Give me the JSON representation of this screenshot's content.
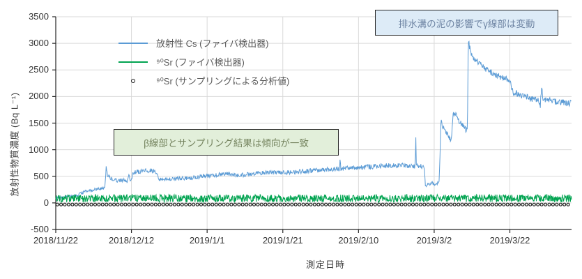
{
  "chart_data": {
    "type": "line",
    "title": "",
    "xlabel": "測定日時",
    "ylabel": "放射性物質濃度 (Bq L⁻¹)",
    "ylim": [
      -500,
      3500
    ],
    "yticks": [
      3500,
      3000,
      2500,
      2000,
      1500,
      1000,
      500,
      0,
      -500
    ],
    "xticks": [
      {
        "day": 0,
        "label": "2018/11/22"
      },
      {
        "day": 20,
        "label": "2018/12/12"
      },
      {
        "day": 40,
        "label": "2019/1/1"
      },
      {
        "day": 60,
        "label": "2019/1/21"
      },
      {
        "day": 80,
        "label": "2019/2/10"
      },
      {
        "day": 100,
        "label": "2019/3/2"
      },
      {
        "day": 120,
        "label": "2019/3/22"
      }
    ],
    "x_domain_days": 136.3,
    "grid": true,
    "gridline_color": "#d9d9d9",
    "axis_color": "#262626",
    "legend": [
      {
        "label": "放射性 Cs (ファイバ検出器)",
        "type": "line",
        "color": "#5B9BD5"
      },
      {
        "label": "⁹⁰Sr (ファイバ検出器)",
        "type": "line",
        "color": "#00A350"
      },
      {
        "label": "⁹⁰Sr (サンプリングによる分析値)",
        "type": "dot",
        "color": "#1A1A1A"
      }
    ],
    "series": [
      {
        "name": "放射性 Cs (ファイバ検出器)",
        "type": "noisy-line",
        "color": "#5B9BD5",
        "noise_base": 22,
        "noise_scale": 0.035,
        "noise_max": 60,
        "control_points": [
          [
            0,
            80
          ],
          [
            2,
            105
          ],
          [
            4,
            125
          ],
          [
            6,
            150
          ],
          [
            7,
            195
          ],
          [
            8,
            215
          ],
          [
            9,
            230
          ],
          [
            10,
            245
          ],
          [
            11,
            255
          ],
          [
            12,
            265
          ],
          [
            13,
            278
          ],
          [
            13.3,
            700
          ],
          [
            13.6,
            540
          ],
          [
            14.2,
            475
          ],
          [
            15,
            445
          ],
          [
            16,
            430
          ],
          [
            17,
            415
          ],
          [
            18,
            432
          ],
          [
            18.8,
            392
          ],
          [
            19.3,
            498
          ],
          [
            19.8,
            430
          ],
          [
            20.5,
            552
          ],
          [
            21,
            572
          ],
          [
            22,
            590
          ],
          [
            23,
            600
          ],
          [
            24,
            612
          ],
          [
            25,
            602
          ],
          [
            26,
            596
          ],
          [
            26.8,
            576
          ],
          [
            27.2,
            432
          ],
          [
            28,
            446
          ],
          [
            29,
            452
          ],
          [
            30,
            446
          ],
          [
            31,
            455
          ],
          [
            32,
            450
          ],
          [
            33,
            460
          ],
          [
            34,
            456
          ],
          [
            35,
            464
          ],
          [
            36,
            470
          ],
          [
            38,
            490
          ],
          [
            40,
            506
          ],
          [
            42,
            520
          ],
          [
            44,
            536
          ],
          [
            45,
            550
          ],
          [
            46,
            540
          ],
          [
            47,
            526
          ],
          [
            48,
            516
          ],
          [
            50,
            530
          ],
          [
            52,
            544
          ],
          [
            54,
            556
          ],
          [
            56,
            566
          ],
          [
            58,
            576
          ],
          [
            60,
            566
          ],
          [
            62,
            576
          ],
          [
            64,
            586
          ],
          [
            66,
            596
          ],
          [
            68,
            606
          ],
          [
            70,
            616
          ],
          [
            72,
            626
          ],
          [
            74,
            634
          ],
          [
            75,
            640
          ],
          [
            75.15,
            890
          ],
          [
            75.3,
            646
          ],
          [
            76,
            650
          ],
          [
            78,
            656
          ],
          [
            80,
            664
          ],
          [
            82,
            674
          ],
          [
            84,
            684
          ],
          [
            86,
            694
          ],
          [
            88,
            700
          ],
          [
            90,
            696
          ],
          [
            92,
            700
          ],
          [
            94,
            690
          ],
          [
            95,
            694
          ],
          [
            95.15,
            1230
          ],
          [
            95.3,
            694
          ],
          [
            96,
            690
          ],
          [
            97,
            684
          ],
          [
            97.4,
            658
          ],
          [
            97.7,
            310
          ],
          [
            98.5,
            345
          ],
          [
            99.5,
            372
          ],
          [
            100.5,
            356
          ],
          [
            101.3,
            368
          ],
          [
            101.8,
            1520
          ],
          [
            102.3,
            1432
          ],
          [
            103,
            1330
          ],
          [
            103.8,
            1232
          ],
          [
            104.5,
            1172
          ],
          [
            105,
            1642
          ],
          [
            105.5,
            1680
          ],
          [
            106,
            1602
          ],
          [
            106.8,
            1522
          ],
          [
            107.5,
            1452
          ],
          [
            108.2,
            1396
          ],
          [
            108.8,
            1352
          ],
          [
            109,
            3080
          ],
          [
            109.3,
            2932
          ],
          [
            109.8,
            2802
          ],
          [
            110.5,
            2722
          ],
          [
            111.5,
            2652
          ],
          [
            112.5,
            2582
          ],
          [
            113.5,
            2532
          ],
          [
            114.5,
            2482
          ],
          [
            115.5,
            2442
          ],
          [
            116.5,
            2402
          ],
          [
            117.5,
            2372
          ],
          [
            118.5,
            2342
          ],
          [
            119.5,
            2312
          ],
          [
            120.2,
            2292
          ],
          [
            120.4,
            2102
          ],
          [
            121.5,
            2072
          ],
          [
            122.5,
            2042
          ],
          [
            123.5,
            2012
          ],
          [
            124.5,
            1992
          ],
          [
            125.5,
            1962
          ],
          [
            126.5,
            1942
          ],
          [
            127.5,
            1916
          ],
          [
            128,
            1802
          ],
          [
            128.4,
            2190
          ],
          [
            128.8,
            1962
          ],
          [
            129.5,
            1942
          ],
          [
            130.5,
            1926
          ],
          [
            131.5,
            1912
          ],
          [
            132.5,
            1900
          ],
          [
            133.5,
            1892
          ],
          [
            134.5,
            1886
          ],
          [
            135.5,
            1880
          ],
          [
            136.3,
            1876
          ]
        ]
      },
      {
        "name": "⁹⁰Sr (ファイバ検出器)",
        "type": "noisy-line",
        "color": "#00A350",
        "baseline": 85,
        "noise_amp": 72,
        "control_points": [
          [
            0,
            85
          ],
          [
            136.3,
            85
          ]
        ]
      },
      {
        "name": "⁹⁰Sr (サンプリングによる分析値)",
        "type": "dots",
        "value": -30,
        "interval_days": 1.0,
        "start_day": 0.4,
        "dot_stroke": "#1A1A1A",
        "dot_fill": "#F2F7F2"
      }
    ],
    "annotations": [
      {
        "text": "排水溝の泥の影響でγ線部は変動",
        "bg": "#DDEBF7",
        "border": "#262626",
        "text_color": "#6E84A3"
      },
      {
        "text": "β線部とサンプリング結果は傾向が一致",
        "bg": "#E2EFDA",
        "border": "#262626",
        "text_color": "#75845F"
      }
    ]
  }
}
